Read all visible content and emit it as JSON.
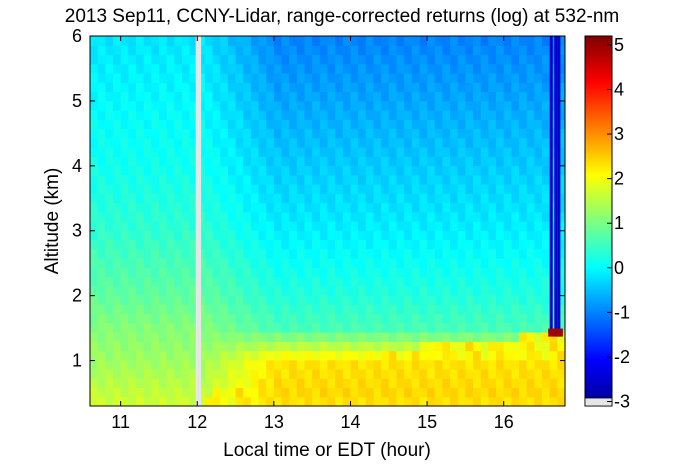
{
  "chart_data": {
    "type": "heatmap",
    "title": "2013 Sep11, CCNY-Lidar, range-corrected returns (log) at 532-nm",
    "xlabel": "Local time or EDT (hour)",
    "ylabel": "Altitude (km)",
    "xlim": [
      10.6,
      16.8
    ],
    "ylim": [
      0.3,
      6.0
    ],
    "x_ticks": [
      11,
      12,
      13,
      14,
      15,
      16
    ],
    "y_ticks": [
      1,
      2,
      3,
      4,
      5,
      6
    ],
    "colorbar": {
      "range": [
        -3.1,
        5.2
      ],
      "ticks": [
        -3,
        -2,
        -1,
        0,
        1,
        2,
        3,
        4,
        5
      ],
      "colormap": "jet"
    },
    "data_gap": [
      11.98,
      12.05
    ],
    "boundary_layer_top_km": {
      "time": [
        12.0,
        12.5,
        13.0,
        13.5,
        14.0,
        14.5,
        15.0,
        15.5,
        16.0,
        16.5,
        16.8
      ],
      "value": [
        0.45,
        0.6,
        0.75,
        0.85,
        0.95,
        1.1,
        1.25,
        1.3,
        1.3,
        1.45,
        1.5
      ]
    },
    "cloud_events": {
      "time": [
        16.62,
        16.68,
        16.72
      ],
      "base_km": [
        1.4,
        1.4,
        1.4
      ]
    },
    "profile_levels": {
      "altitude_km": [
        0.3,
        0.5,
        1.0,
        1.5,
        2.0,
        2.5,
        3.0,
        4.0,
        5.0,
        6.0
      ],
      "morning_log_returns": [
        1.7,
        1.6,
        1.3,
        1.1,
        0.8,
        0.6,
        0.4,
        0.15,
        0.0,
        -0.2
      ],
      "afternoon_log_returns": [
        2.3,
        2.4,
        2.3,
        0.6,
        0.3,
        0.1,
        -0.1,
        -0.4,
        -0.7,
        -1.0
      ]
    }
  }
}
